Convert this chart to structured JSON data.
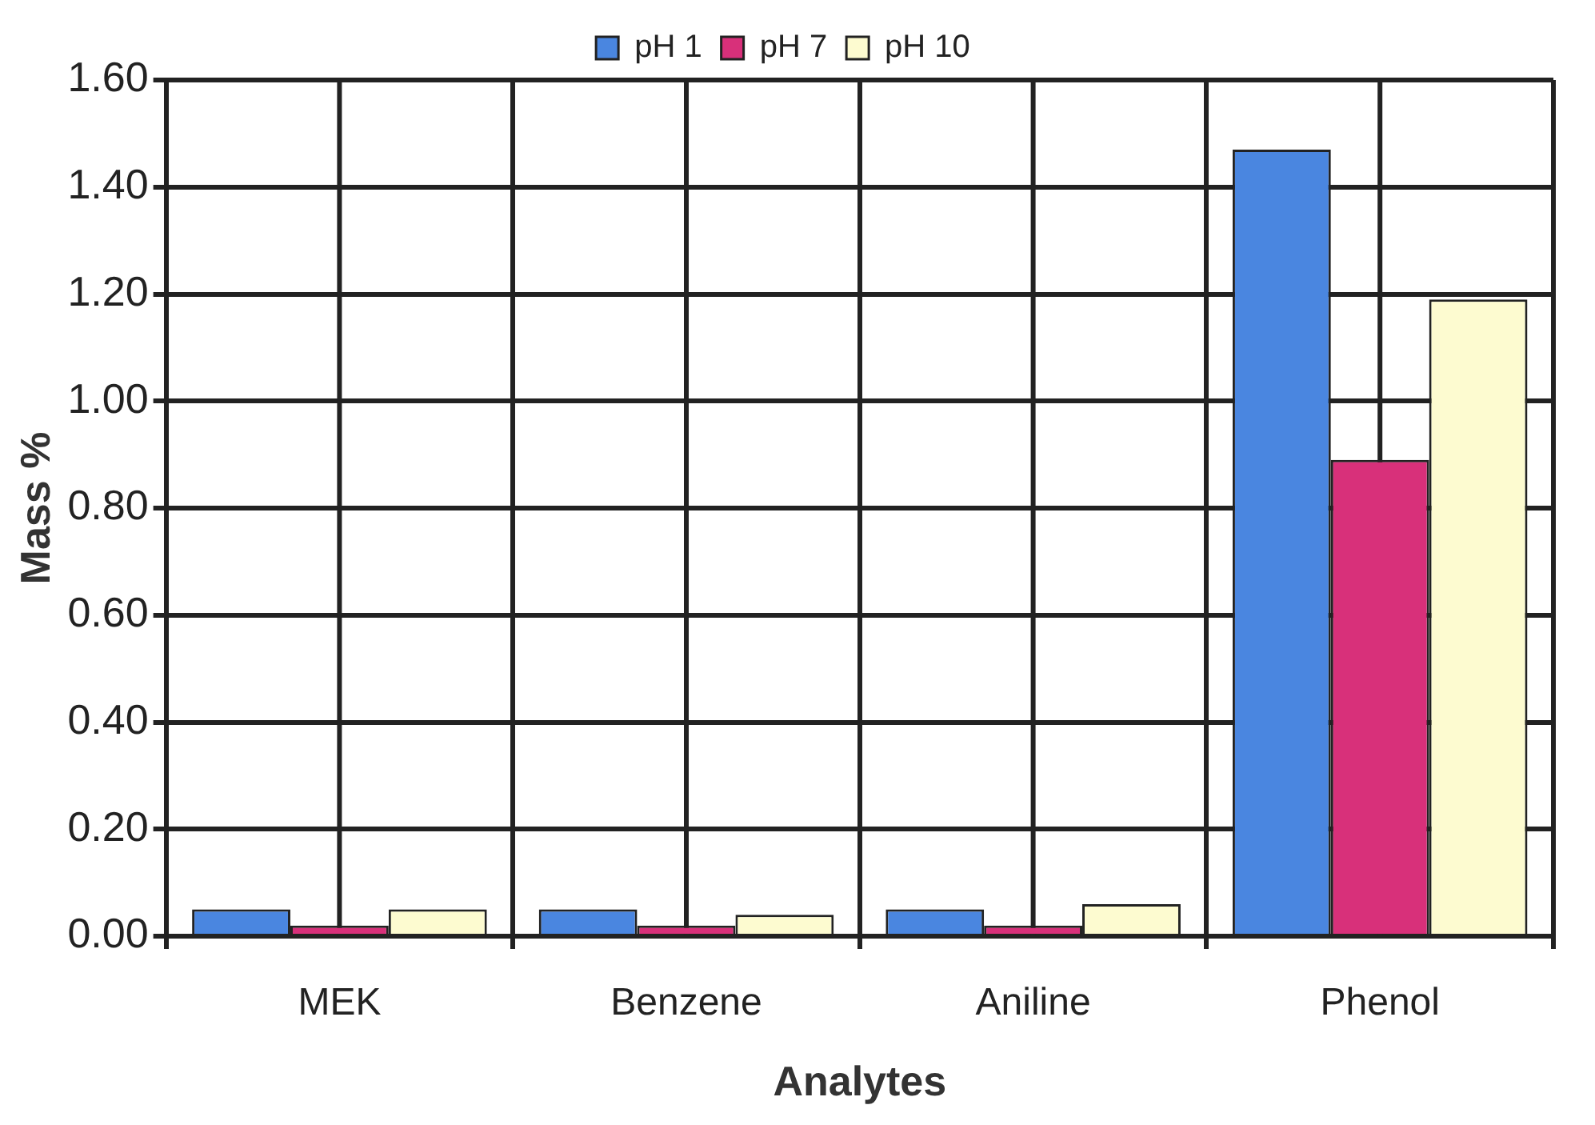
{
  "chart_data": {
    "type": "bar",
    "xlabel": "Analytes",
    "ylabel": "Mass %",
    "categories": [
      "MEK",
      "Benzene",
      "Aniline",
      "Phenol"
    ],
    "series": [
      {
        "name": "pH 1",
        "color": "#4a86e0",
        "values": [
          0.05,
          0.05,
          0.05,
          1.47
        ]
      },
      {
        "name": "pH 7",
        "color": "#d8307a",
        "values": [
          0.02,
          0.02,
          0.02,
          0.89
        ]
      },
      {
        "name": "pH 10",
        "color": "#fdfbd0",
        "values": [
          0.05,
          0.04,
          0.06,
          1.19
        ]
      }
    ],
    "ylim": [
      0,
      1.6
    ],
    "yticks": [
      {
        "value": 0,
        "label": "0.00"
      },
      {
        "value": 0.2,
        "label": "0.20"
      },
      {
        "value": 0.4,
        "label": "0.40"
      },
      {
        "value": 0.6,
        "label": "0.60"
      },
      {
        "value": 0.8,
        "label": "0.80"
      },
      {
        "value": 1,
        "label": "1.00"
      },
      {
        "value": 1.2,
        "label": "1.20"
      },
      {
        "value": 1.4,
        "label": "1.40"
      },
      {
        "value": 1.6,
        "label": "1.60"
      }
    ],
    "grid": true,
    "legend": "top"
  }
}
